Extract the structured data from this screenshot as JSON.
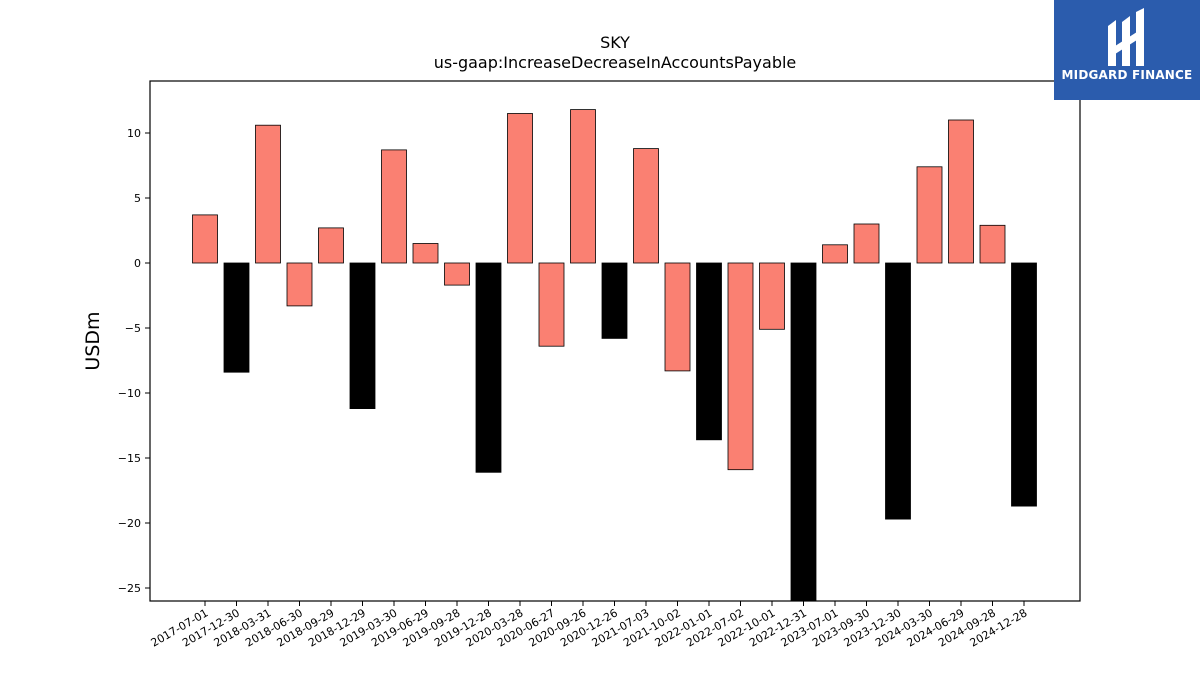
{
  "logo": {
    "text": "MIDGARD FINANCE",
    "icon": "midgard-logo-icon",
    "color": "#2b5cad"
  },
  "chart_data": {
    "type": "bar",
    "title": "SKY",
    "subtitle": "us-gaap:IncreaseDecreaseInAccountsPayable",
    "xlabel": "",
    "ylabel": "USDm",
    "ylim": [
      -26,
      14
    ],
    "yticks": [
      10,
      5,
      0,
      -5,
      -10,
      -15,
      -20,
      -25
    ],
    "grid": false,
    "colors": {
      "quarter": "#fa8072",
      "annual": "#000000"
    },
    "categories": [
      "2017-07-01",
      "2017-12-30",
      "2018-03-31",
      "2018-06-30",
      "2018-09-29",
      "2018-12-29",
      "2019-03-30",
      "2019-06-29",
      "2019-09-28",
      "2019-12-28",
      "2020-03-28",
      "2020-06-27",
      "2020-09-26",
      "2020-12-26",
      "2021-07-03",
      "2021-10-02",
      "2022-01-01",
      "2022-07-02",
      "2022-10-01",
      "2022-12-31",
      "2023-07-01",
      "2023-09-30",
      "2023-12-30",
      "2024-03-30",
      "2024-06-29",
      "2024-09-28",
      "2024-12-28"
    ],
    "values": [
      3.7,
      -8.4,
      10.6,
      -3.3,
      2.7,
      -11.2,
      8.7,
      1.5,
      -1.7,
      -16.1,
      11.5,
      -6.4,
      11.8,
      -5.8,
      8.8,
      -8.3,
      -13.6,
      -15.9,
      -5.1,
      -26.0,
      1.4,
      3.0,
      -19.7,
      7.4,
      11.0,
      2.9,
      -18.7
    ],
    "bar_kind": [
      "quarter",
      "annual",
      "quarter",
      "quarter",
      "quarter",
      "annual",
      "quarter",
      "quarter",
      "quarter",
      "annual",
      "quarter",
      "quarter",
      "quarter",
      "annual",
      "quarter",
      "quarter",
      "annual",
      "quarter",
      "quarter",
      "annual",
      "quarter",
      "quarter",
      "annual",
      "quarter",
      "quarter",
      "quarter",
      "annual"
    ]
  }
}
